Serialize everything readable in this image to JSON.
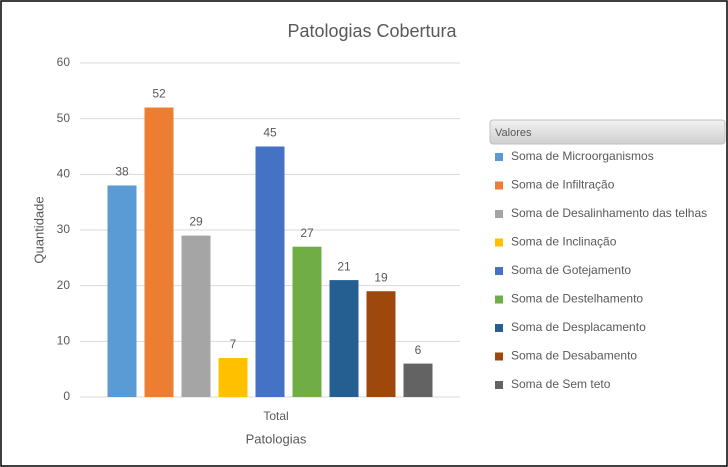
{
  "chart_data": {
    "type": "bar",
    "title": "Patologias Cobertura",
    "x_label": "Patologias",
    "y_label": "Quantidade",
    "categories": [
      "Total"
    ],
    "legend_title": "Valores",
    "legend": "right",
    "grid": true,
    "ylim": [
      0,
      60
    ],
    "yticks": [
      0,
      10,
      20,
      30,
      40,
      50,
      60
    ],
    "series": [
      {
        "name": "Soma de Microorganismos",
        "color": "#5b9bd5",
        "values": [
          38
        ]
      },
      {
        "name": "Soma de Infiltração",
        "color": "#ed7d31",
        "values": [
          52
        ]
      },
      {
        "name": "Soma de Desalinhamento das telhas",
        "color": "#a5a5a5",
        "values": [
          29
        ]
      },
      {
        "name": "Soma de Inclinação",
        "color": "#ffc000",
        "values": [
          7
        ]
      },
      {
        "name": "Soma de Gotejamento",
        "color": "#4472c4",
        "values": [
          45
        ]
      },
      {
        "name": "Soma de Destelhamento",
        "color": "#70ad47",
        "values": [
          27
        ]
      },
      {
        "name": "Soma de Desplacamento",
        "color": "#255e91",
        "values": [
          21
        ]
      },
      {
        "name": "Soma de Desabamento",
        "color": "#9e480e",
        "values": [
          19
        ]
      },
      {
        "name": "Soma de Sem teto",
        "color": "#636363",
        "values": [
          6
        ]
      }
    ]
  }
}
